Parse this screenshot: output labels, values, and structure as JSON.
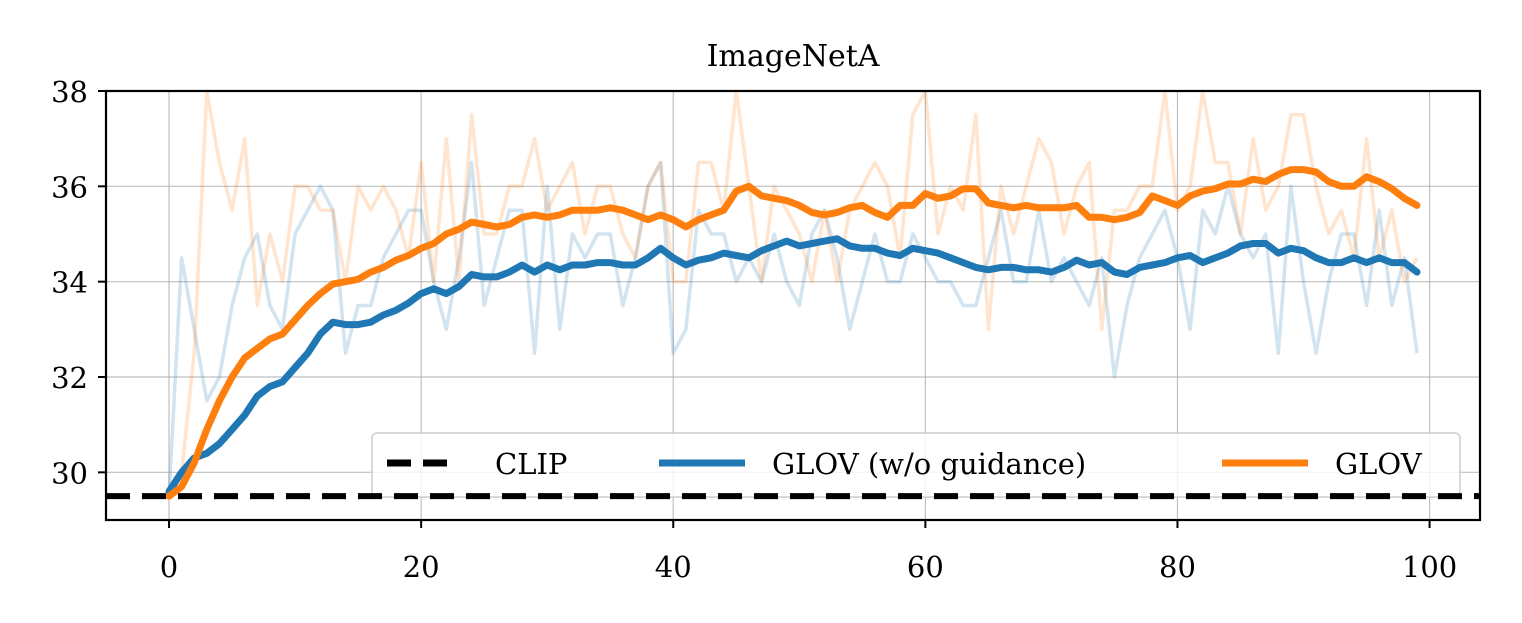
{
  "chart_data": {
    "type": "line",
    "title": "ImageNetA",
    "xlabel": "",
    "ylabel": "",
    "xlim": [
      -5,
      104
    ],
    "ylim": [
      29,
      38
    ],
    "xticks": [
      0,
      20,
      40,
      60,
      80,
      100
    ],
    "yticks": [
      30,
      32,
      34,
      36,
      38
    ],
    "grid": true,
    "legend_position": "lower-right",
    "legend_columns": 3,
    "colors": {
      "clip": "#000000",
      "no_guidance": "#1f77b4",
      "glov": "#ff7f0e"
    },
    "baseline": {
      "name": "CLIP",
      "y": 29.5,
      "style": "dashed"
    },
    "series": [
      {
        "name": "GLOV (w/o guidance)",
        "color": "#1f77b4",
        "x_start": 0,
        "x_step": 1,
        "values": [
          29.6,
          30.0,
          30.3,
          30.4,
          30.6,
          30.9,
          31.2,
          31.6,
          31.8,
          31.9,
          32.2,
          32.5,
          32.9,
          33.15,
          33.1,
          33.1,
          33.15,
          33.3,
          33.4,
          33.55,
          33.75,
          33.85,
          33.75,
          33.9,
          34.15,
          34.1,
          34.1,
          34.2,
          34.35,
          34.2,
          34.35,
          34.25,
          34.35,
          34.35,
          34.4,
          34.4,
          34.35,
          34.35,
          34.5,
          34.7,
          34.5,
          34.35,
          34.45,
          34.5,
          34.6,
          34.55,
          34.5,
          34.65,
          34.75,
          34.85,
          34.75,
          34.8,
          34.85,
          34.9,
          34.75,
          34.7,
          34.7,
          34.6,
          34.55,
          34.7,
          34.65,
          34.6,
          34.5,
          34.4,
          34.3,
          34.25,
          34.3,
          34.3,
          34.25,
          34.25,
          34.2,
          34.3,
          34.45,
          34.35,
          34.4,
          34.2,
          34.15,
          34.3,
          34.35,
          34.4,
          34.5,
          34.55,
          34.4,
          34.5,
          34.6,
          34.75,
          34.8,
          34.8,
          34.6,
          34.7,
          34.65,
          34.5,
          34.4,
          34.4,
          34.5,
          34.4,
          34.5,
          34.4,
          34.4,
          34.2
        ]
      },
      {
        "name": "GLOV",
        "color": "#ff7f0e",
        "x_start": 0,
        "x_step": 1,
        "values": [
          29.5,
          29.7,
          30.2,
          30.9,
          31.5,
          32.0,
          32.4,
          32.6,
          32.8,
          32.9,
          33.2,
          33.5,
          33.75,
          33.95,
          34.0,
          34.05,
          34.2,
          34.3,
          34.45,
          34.55,
          34.7,
          34.8,
          35.0,
          35.1,
          35.25,
          35.2,
          35.15,
          35.2,
          35.35,
          35.4,
          35.35,
          35.4,
          35.5,
          35.5,
          35.5,
          35.55,
          35.5,
          35.4,
          35.3,
          35.4,
          35.3,
          35.15,
          35.3,
          35.4,
          35.5,
          35.9,
          36.0,
          35.8,
          35.75,
          35.7,
          35.6,
          35.45,
          35.4,
          35.45,
          35.55,
          35.6,
          35.45,
          35.35,
          35.6,
          35.6,
          35.85,
          35.75,
          35.8,
          35.95,
          35.95,
          35.65,
          35.6,
          35.55,
          35.6,
          35.55,
          35.55,
          35.55,
          35.6,
          35.35,
          35.35,
          35.3,
          35.35,
          35.45,
          35.8,
          35.7,
          35.6,
          35.8,
          35.9,
          35.95,
          36.05,
          36.05,
          36.15,
          36.1,
          36.25,
          36.35,
          36.35,
          36.3,
          36.1,
          36.0,
          36.0,
          36.2,
          36.1,
          35.95,
          35.75,
          35.6
        ]
      }
    ],
    "raw_series": [
      {
        "name": "",
        "color": "#1f77b4",
        "opacity": 0.2,
        "x_start": 0,
        "x_step": 1,
        "values": [
          29.5,
          34.5,
          33.0,
          31.5,
          32.0,
          33.5,
          34.5,
          35.0,
          33.5,
          33.0,
          35.0,
          35.5,
          36.0,
          35.5,
          32.5,
          33.5,
          33.5,
          34.5,
          35.0,
          35.5,
          35.5,
          34.0,
          33.0,
          34.5,
          36.5,
          33.5,
          34.5,
          35.5,
          35.5,
          32.5,
          36.0,
          33.0,
          35.0,
          34.5,
          35.0,
          35.0,
          33.5,
          34.5,
          36.0,
          36.5,
          32.5,
          33.0,
          35.5,
          35.0,
          35.0,
          34.0,
          34.5,
          34.0,
          35.0,
          34.0,
          33.5,
          35.0,
          35.5,
          34.5,
          33.0,
          34.0,
          35.0,
          34.0,
          34.0,
          35.0,
          34.5,
          34.0,
          34.0,
          33.5,
          33.5,
          34.5,
          35.5,
          34.0,
          34.0,
          35.5,
          34.0,
          34.5,
          34.0,
          33.5,
          34.5,
          32.0,
          33.5,
          34.5,
          35.0,
          35.5,
          34.5,
          33.0,
          35.5,
          35.0,
          36.0,
          35.0,
          34.5,
          35.0,
          32.5,
          36.0,
          34.0,
          32.5,
          34.0,
          35.0,
          35.0,
          33.5,
          35.5,
          33.5,
          34.5,
          32.5
        ]
      },
      {
        "name": "",
        "color": "#ff7f0e",
        "opacity": 0.2,
        "x_start": 0,
        "x_step": 1,
        "values": [
          29.5,
          30.0,
          32.5,
          38.0,
          36.5,
          35.5,
          37.0,
          33.5,
          35.0,
          34.0,
          36.0,
          36.0,
          35.5,
          35.5,
          34.0,
          36.0,
          35.5,
          36.0,
          35.5,
          34.5,
          36.5,
          34.0,
          37.0,
          34.0,
          37.5,
          35.0,
          35.0,
          36.0,
          36.0,
          37.0,
          35.5,
          36.0,
          36.5,
          35.0,
          36.0,
          36.0,
          35.0,
          34.5,
          36.0,
          36.5,
          34.0,
          34.0,
          36.5,
          36.5,
          35.5,
          38.0,
          36.0,
          34.0,
          36.0,
          35.5,
          35.0,
          34.0,
          35.5,
          34.0,
          35.5,
          36.0,
          36.5,
          36.0,
          34.5,
          37.5,
          38.0,
          35.0,
          36.0,
          35.5,
          37.5,
          33.0,
          36.0,
          35.0,
          36.0,
          37.0,
          36.5,
          35.0,
          36.0,
          36.5,
          33.0,
          35.5,
          35.5,
          36.0,
          36.0,
          38.0,
          35.5,
          36.0,
          38.0,
          36.5,
          36.5,
          35.0,
          37.0,
          35.5,
          36.0,
          37.5,
          37.5,
          36.0,
          35.0,
          35.5,
          34.5,
          37.0,
          34.5,
          35.5,
          34.0,
          34.5
        ]
      }
    ],
    "legend": [
      {
        "label": "CLIP",
        "color": "#000000",
        "style": "dashed"
      },
      {
        "label": "GLOV (w/o guidance)",
        "color": "#1f77b4",
        "style": "solid"
      },
      {
        "label": "GLOV",
        "color": "#ff7f0e",
        "style": "solid"
      }
    ]
  }
}
